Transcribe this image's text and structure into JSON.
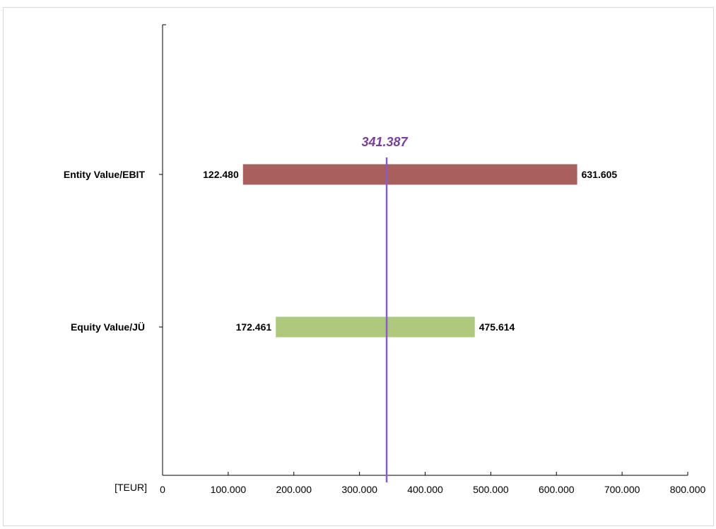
{
  "chart_data": {
    "type": "bar",
    "orientation": "horizontal",
    "subtype": "floating-range",
    "title": "",
    "xlabel": "[TEUR]",
    "ylabel": "",
    "xlim": [
      0,
      800000
    ],
    "x_ticks": [
      {
        "value": 0,
        "label": "0"
      },
      {
        "value": 100000,
        "label": "100.000"
      },
      {
        "value": 200000,
        "label": "200.000"
      },
      {
        "value": 300000,
        "label": "300.000"
      },
      {
        "value": 400000,
        "label": "400.000"
      },
      {
        "value": 500000,
        "label": "500.000"
      },
      {
        "value": 600000,
        "label": "600.000"
      },
      {
        "value": 700000,
        "label": "700.000"
      },
      {
        "value": 800000,
        "label": "800.000"
      }
    ],
    "grid": false,
    "legend": "none",
    "categories": [
      "Entity Value/EBIT",
      "Equity Value/JÜ"
    ],
    "ranges": [
      {
        "category": "Entity Value/EBIT",
        "low": 122480,
        "high": 631605,
        "low_label": "122.480",
        "high_label": "631.605",
        "color": "#a9605d"
      },
      {
        "category": "Equity Value/JÜ",
        "low": 172461,
        "high": 475614,
        "low_label": "172.461",
        "high_label": "475.614",
        "color": "#aec97b"
      }
    ],
    "reference_line": {
      "value": 341387,
      "label": "341.387",
      "color": "#8b5cc6",
      "label_color": "#7a3f9e"
    }
  }
}
